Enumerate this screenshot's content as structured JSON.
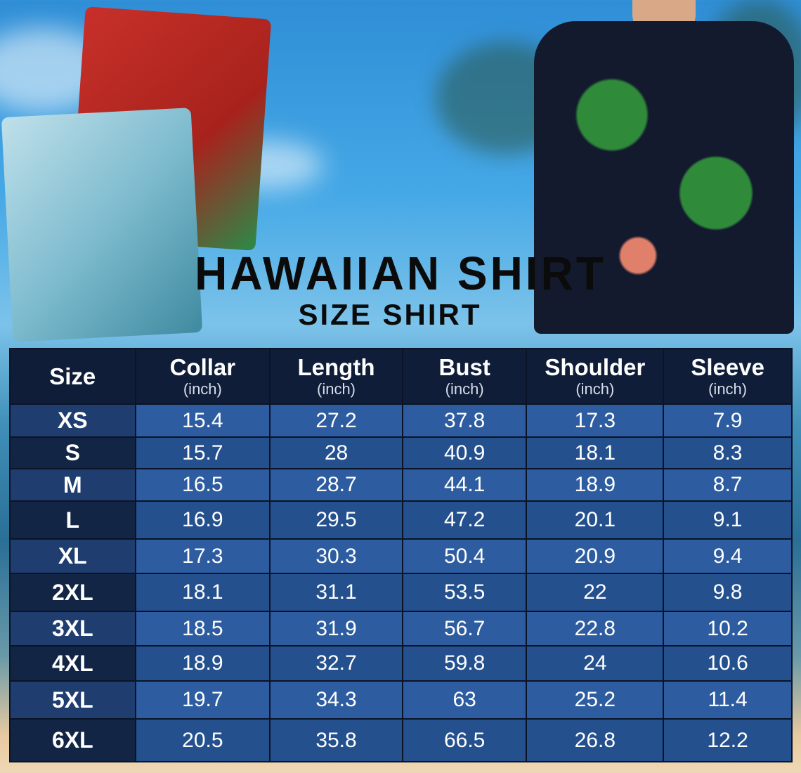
{
  "title": "HAWAIIAN SHIRT",
  "subtitle": "SIZE SHIRT",
  "table": {
    "headers": [
      {
        "label": "Size",
        "unit": ""
      },
      {
        "label": "Collar",
        "unit": "(inch)"
      },
      {
        "label": "Length",
        "unit": "(inch)"
      },
      {
        "label": "Bust",
        "unit": "(inch)"
      },
      {
        "label": "Shoulder",
        "unit": "(inch)"
      },
      {
        "label": "Sleeve",
        "unit": "(inch)"
      }
    ],
    "rows": [
      [
        "XS",
        "15.4",
        "27.2",
        "37.8",
        "17.3",
        "7.9"
      ],
      [
        "S",
        "15.7",
        "28",
        "40.9",
        "18.1",
        "8.3"
      ],
      [
        "M",
        "16.5",
        "28.7",
        "44.1",
        "18.9",
        "8.7"
      ],
      [
        "L",
        "16.9",
        "29.5",
        "47.2",
        "20.1",
        "9.1"
      ],
      [
        "XL",
        "17.3",
        "30.3",
        "50.4",
        "20.9",
        "9.4"
      ],
      [
        "2XL",
        "18.1",
        "31.1",
        "53.5",
        "22",
        "9.8"
      ],
      [
        "3XL",
        "18.5",
        "31.9",
        "56.7",
        "22.8",
        "10.2"
      ],
      [
        "4XL",
        "18.9",
        "32.7",
        "59.8",
        "24",
        "10.6"
      ],
      [
        "5XL",
        "19.7",
        "34.3",
        "63",
        "25.2",
        "11.4"
      ],
      [
        "6XL",
        "20.5",
        "35.8",
        "66.5",
        "26.8",
        "12.2"
      ]
    ]
  },
  "colors": {
    "header_bg": "#0f1d38",
    "cell_bg": "#2d5da0",
    "size_bg": "#1f3d6e",
    "text": "#ffffff"
  }
}
